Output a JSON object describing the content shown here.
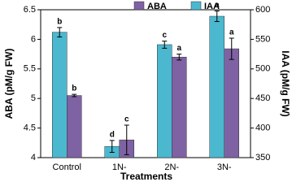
{
  "chart_data": {
    "type": "bar",
    "x_label": "Treatments",
    "y_label": "ABA (pM/g FW)",
    "y2_label": "IAA (pM/g FW)",
    "categories": [
      "Control",
      "1N-",
      "2N-",
      "3N-"
    ],
    "series": [
      {
        "name": "IAA",
        "color": "#4bb8cf",
        "axis": "y2",
        "values": [
          562,
          369,
          541,
          589
        ],
        "errors": [
          8,
          10,
          6,
          9
        ],
        "letters": [
          "b",
          "d",
          "c",
          "a"
        ]
      },
      {
        "name": "ABA",
        "color": "#7e62a3",
        "axis": "y",
        "values": [
          5.05,
          4.3,
          5.7,
          5.84
        ],
        "errors": [
          0.02,
          0.25,
          0.05,
          0.18
        ],
        "letters": [
          "b",
          "c",
          "a",
          "a"
        ]
      }
    ],
    "legend_order": [
      "ABA",
      "IAA"
    ],
    "ylim": [
      4,
      6.5
    ],
    "yticks": [
      4,
      4.5,
      5,
      5.5,
      6,
      6.5
    ],
    "y2lim": [
      350,
      600
    ],
    "y2ticks": [
      350,
      400,
      450,
      500,
      550,
      600
    ]
  }
}
